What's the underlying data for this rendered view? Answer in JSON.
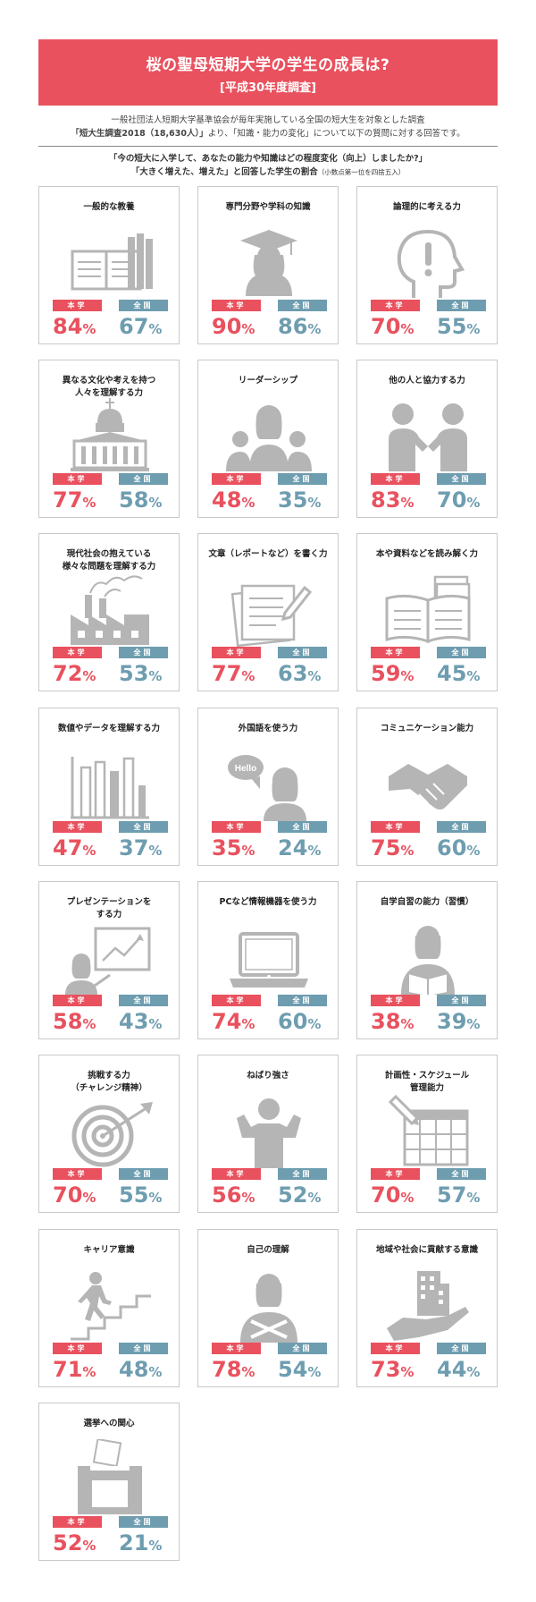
{
  "header": {
    "title": "桜の聖母短期大学の学生の成長は?",
    "subtitle": "[平成30年度調査]"
  },
  "intro": {
    "line1": "一般社団法人短期大学基準協会が毎年実施している全国の短大生を対象とした調査",
    "line2_bold": "「短大生調査2018（18,630人）」",
    "line2_rest": "より、「知識・能力の変化」について以下の質問に対する回答です。"
  },
  "question": {
    "line1": "「今の短大に入学して、あなたの能力や知識はどの程度変化（向上）しましたか?」",
    "line2": "「大きく増えた、増えた」と回答した学生の割合",
    "note": "（小数点第一位を四捨五入）"
  },
  "labels": {
    "school": "本学",
    "national": "全国",
    "percent": "%"
  },
  "colors": {
    "accent": "#e9515e",
    "national": "#6e9db0",
    "icon": "#b5b5b5"
  },
  "items": [
    {
      "title": "一般的な教養",
      "icon": "books-icon",
      "school": 84,
      "national": 67
    },
    {
      "title": "専門分野や学科の知識",
      "icon": "graduate-icon",
      "school": 90,
      "national": 86
    },
    {
      "title": "論理的に考える力",
      "icon": "thinking-head-icon",
      "school": 70,
      "national": 55
    },
    {
      "title": "異なる文化や考えを持つ\n人々を理解する力",
      "icon": "cathedral-icon",
      "school": 77,
      "national": 58
    },
    {
      "title": "リーダーシップ",
      "icon": "leader-group-icon",
      "school": 48,
      "national": 35
    },
    {
      "title": "他の人と協力する力",
      "icon": "handshake-people-icon",
      "school": 83,
      "national": 70
    },
    {
      "title": "現代社会の抱えている\n様々な問題を理解する力",
      "icon": "factory-icon",
      "school": 72,
      "national": 53
    },
    {
      "title": "文章（レポートなど）を書く力",
      "icon": "document-pen-icon",
      "school": 77,
      "national": 63
    },
    {
      "title": "本や資料などを読み解く力",
      "icon": "open-book-icon",
      "school": 59,
      "national": 45
    },
    {
      "title": "数値やデータを理解する力",
      "icon": "bar-chart-icon",
      "school": 47,
      "national": 37
    },
    {
      "title": "外国語を使う力",
      "icon": "hello-speech-icon",
      "school": 35,
      "national": 24
    },
    {
      "title": "コミュニケーション能力",
      "icon": "handshake-icon",
      "school": 75,
      "national": 60
    },
    {
      "title": "プレゼンテーションを\nする力",
      "icon": "presentation-icon",
      "school": 58,
      "national": 43
    },
    {
      "title": "PCなど情報機器を使う力",
      "icon": "laptop-icon",
      "school": 74,
      "national": 60
    },
    {
      "title": "自学自習の能力（習慣）",
      "icon": "reading-person-icon",
      "school": 38,
      "national": 39
    },
    {
      "title": "挑戦する力\n（チャレンジ精神）",
      "icon": "target-icon",
      "school": 70,
      "national": 55
    },
    {
      "title": "ねばり強さ",
      "icon": "strong-person-icon",
      "school": 56,
      "national": 52
    },
    {
      "title": "計画性・スケジュール\n管理能力",
      "icon": "calendar-icon",
      "school": 70,
      "national": 57
    },
    {
      "title": "キャリア意識",
      "icon": "stairs-icon",
      "school": 71,
      "national": 48
    },
    {
      "title": "自己の理解",
      "icon": "self-person-icon",
      "school": 78,
      "national": 54
    },
    {
      "title": "地域や社会に貢献する意識",
      "icon": "building-hand-icon",
      "school": 73,
      "national": 44
    },
    {
      "title": "選挙への関心",
      "icon": "ballot-box-icon",
      "school": 52,
      "national": 21
    }
  ]
}
